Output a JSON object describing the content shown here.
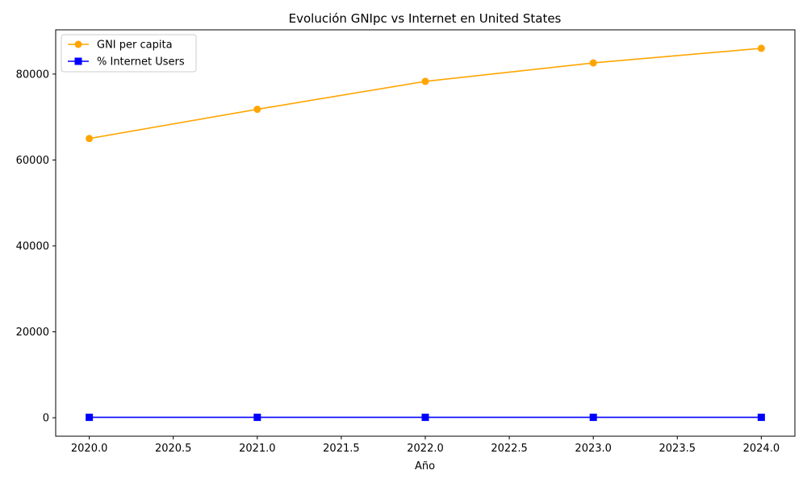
{
  "chart_data": {
    "type": "line",
    "title": "Evolución GNIpc vs Internet en United States",
    "xlabel": "Año",
    "ylabel": "",
    "x": [
      2020,
      2021,
      2022,
      2023,
      2024
    ],
    "xlim": [
      2019.8,
      2024.2
    ],
    "ylim": [
      -4300,
      90300
    ],
    "xticks": [
      2020.0,
      2020.5,
      2021.0,
      2021.5,
      2022.0,
      2022.5,
      2023.0,
      2023.5,
      2024.0
    ],
    "xtick_labels": [
      "2020.0",
      "2020.5",
      "2021.0",
      "2021.5",
      "2022.0",
      "2022.5",
      "2023.0",
      "2023.5",
      "2024.0"
    ],
    "yticks": [
      0,
      20000,
      40000,
      60000,
      80000
    ],
    "ytick_labels": [
      "0",
      "20000",
      "40000",
      "60000",
      "80000"
    ],
    "grid": false,
    "legend_position": "top-left",
    "series": [
      {
        "name": "GNI per capita",
        "color": "#ffa500",
        "marker": "circle",
        "values": [
          65000,
          71800,
          78300,
          82600,
          86000
        ]
      },
      {
        "name": "% Internet Users",
        "color": "#0000ff",
        "marker": "square",
        "values": [
          91,
          92,
          92,
          93,
          93
        ]
      }
    ]
  }
}
